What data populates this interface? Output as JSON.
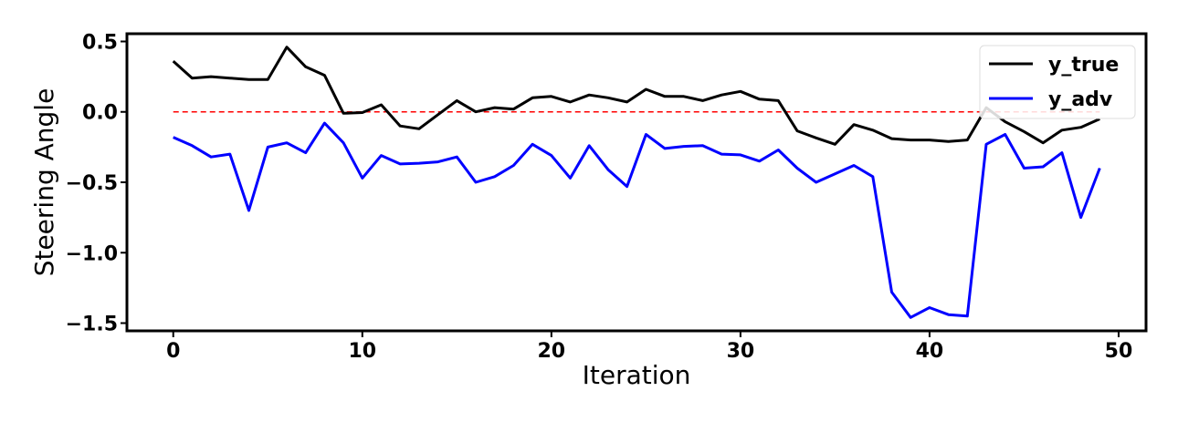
{
  "chart_data": {
    "type": "line",
    "xlabel": "Iteration",
    "ylabel": "Steering Angle",
    "xlim": [
      -2.45,
      51.45
    ],
    "ylim": [
      -1.555,
      0.555
    ],
    "xticks": [
      0,
      10,
      20,
      30,
      40,
      50
    ],
    "xtick_labels": [
      "0",
      "10",
      "20",
      "30",
      "40",
      "50"
    ],
    "yticks": [
      0.5,
      0.0,
      -0.5,
      -1.0,
      -1.5
    ],
    "ytick_labels": [
      "0.5",
      "0.0",
      "−0.5",
      "−1.0",
      "−1.5"
    ],
    "legend_position": "top-right",
    "grid": false,
    "x": [
      0,
      1,
      2,
      3,
      4,
      5,
      6,
      7,
      8,
      9,
      10,
      11,
      12,
      13,
      14,
      15,
      16,
      17,
      18,
      19,
      20,
      21,
      22,
      23,
      24,
      25,
      26,
      27,
      28,
      29,
      30,
      31,
      32,
      33,
      34,
      35,
      36,
      37,
      38,
      39,
      40,
      41,
      42,
      43,
      44,
      45,
      46,
      47,
      48,
      49
    ],
    "series": [
      {
        "name": "y_true",
        "color": "#000000",
        "values": [
          0.36,
          0.24,
          0.25,
          0.24,
          0.23,
          0.23,
          0.46,
          0.32,
          0.26,
          -0.01,
          -0.005,
          0.05,
          -0.1,
          -0.12,
          -0.02,
          0.08,
          0.0,
          0.03,
          0.02,
          0.1,
          0.11,
          0.07,
          0.12,
          0.1,
          0.07,
          0.16,
          0.11,
          0.11,
          0.08,
          0.12,
          0.145,
          0.09,
          0.08,
          -0.135,
          -0.185,
          -0.23,
          -0.09,
          -0.13,
          -0.19,
          -0.2,
          -0.2,
          -0.21,
          -0.2,
          0.03,
          -0.07,
          -0.14,
          -0.22,
          -0.13,
          -0.11,
          -0.05
        ]
      },
      {
        "name": "y_adv",
        "color": "#0000ff",
        "values": [
          -0.18,
          -0.24,
          -0.32,
          -0.3,
          -0.7,
          -0.25,
          -0.22,
          -0.29,
          -0.08,
          -0.22,
          -0.47,
          -0.31,
          -0.37,
          -0.365,
          -0.355,
          -0.32,
          -0.5,
          -0.46,
          -0.38,
          -0.23,
          -0.31,
          -0.47,
          -0.24,
          -0.41,
          -0.53,
          -0.16,
          -0.26,
          -0.245,
          -0.24,
          -0.3,
          -0.305,
          -0.35,
          -0.27,
          -0.4,
          -0.5,
          -0.44,
          -0.38,
          -0.46,
          -1.28,
          -1.46,
          -1.39,
          -1.44,
          -1.45,
          -0.23,
          -0.16,
          -0.4,
          -0.39,
          -0.29,
          -0.75,
          -0.4
        ]
      }
    ],
    "reference_line": {
      "y": 0.0,
      "color": "#ff0000",
      "style": "dashed"
    }
  }
}
